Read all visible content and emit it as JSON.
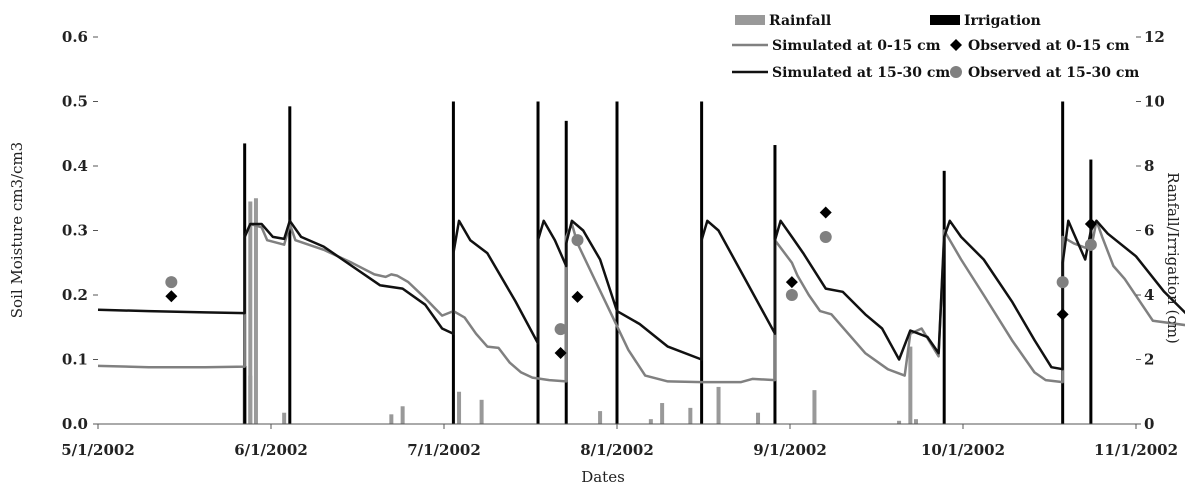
{
  "chart_data": {
    "type": "line",
    "title": "",
    "xlabel": "Dates",
    "ylabel": "Soil Moisture cm3/cm3",
    "y2label": "Ranfall/Irrigation (cm)",
    "xlim": [
      "2002-05-01",
      "2002-11-01"
    ],
    "ylim": [
      0,
      0.6
    ],
    "y2lim": [
      0,
      12
    ],
    "legend_position": "top-right",
    "grid": false,
    "x_ticks": [
      "5/1/2002",
      "6/1/2002",
      "7/1/2002",
      "8/1/2002",
      "9/1/2002",
      "10/1/2002",
      "11/1/2002"
    ],
    "y_ticks": [
      "0.0",
      "0.1",
      "0.2",
      "0.3",
      "0.4",
      "0.5",
      "0.6"
    ],
    "y2_ticks": [
      "0",
      "2",
      "4",
      "6",
      "8",
      "10",
      "12"
    ],
    "colors": {
      "rainfall": "#999999",
      "irrigation": "#000000",
      "sim_0_15": "#808080",
      "sim_15_30": "#111111",
      "obs_0_15": "#000000",
      "obs_15_30": "#808080"
    },
    "series": [
      {
        "name": "Rainfall",
        "kind": "bar",
        "axis": "right",
        "points": [
          [
            "2002-05-27",
            1.8
          ],
          [
            "2002-05-28",
            6.9
          ],
          [
            "2002-05-28",
            1.5
          ],
          [
            "2002-05-29",
            7.0
          ],
          [
            "2002-06-03",
            0.35
          ],
          [
            "2002-06-22",
            0.3
          ],
          [
            "2002-06-24",
            0.55
          ],
          [
            "2002-07-04",
            1.0
          ],
          [
            "2002-07-08",
            0.75
          ],
          [
            "2002-07-29",
            0.4
          ],
          [
            "2002-08-07",
            0.15
          ],
          [
            "2002-08-09",
            0.65
          ],
          [
            "2002-08-14",
            0.5
          ],
          [
            "2002-08-19",
            1.15
          ],
          [
            "2002-08-26",
            0.35
          ],
          [
            "2002-09-05",
            1.05
          ],
          [
            "2002-09-20",
            0.1
          ],
          [
            "2002-09-22",
            2.4
          ],
          [
            "2002-09-23",
            0.15
          ]
        ]
      },
      {
        "name": "Irrigation",
        "kind": "bar",
        "axis": "right",
        "points": [
          [
            "2002-05-27",
            8.7
          ],
          [
            "2002-06-04",
            9.85
          ],
          [
            "2002-07-03",
            10.0
          ],
          [
            "2002-07-18",
            10.0
          ],
          [
            "2002-07-23",
            9.4
          ],
          [
            "2002-08-01",
            10.0
          ],
          [
            "2002-08-16",
            10.0
          ],
          [
            "2002-08-29",
            8.65
          ],
          [
            "2002-09-28",
            7.85
          ],
          [
            "2002-10-19",
            10.0
          ],
          [
            "2002-10-24",
            8.2
          ]
        ]
      },
      {
        "name": "Simulated at 0-15 cm",
        "kind": "line",
        "axis": "left",
        "points": [
          [
            "2002-05-01",
            0.09
          ],
          [
            "2002-05-10",
            0.088
          ],
          [
            "2002-05-20",
            0.088
          ],
          [
            "2002-05-27",
            0.089
          ],
          [
            "2002-05-27",
            0.29
          ],
          [
            "2002-05-28",
            0.31
          ],
          [
            "2002-05-30",
            0.305
          ],
          [
            "2002-05-31",
            0.285
          ],
          [
            "2002-06-03",
            0.278
          ],
          [
            "2002-06-04",
            0.31
          ],
          [
            "2002-06-05",
            0.285
          ],
          [
            "2002-06-10",
            0.27
          ],
          [
            "2002-06-15",
            0.25
          ],
          [
            "2002-06-19",
            0.232
          ],
          [
            "2002-06-21",
            0.228
          ],
          [
            "2002-06-22",
            0.232
          ],
          [
            "2002-06-23",
            0.23
          ],
          [
            "2002-06-25",
            0.22
          ],
          [
            "2002-06-28",
            0.195
          ],
          [
            "2002-07-01",
            0.168
          ],
          [
            "2002-07-03",
            0.175
          ],
          [
            "2002-07-05",
            0.165
          ],
          [
            "2002-07-07",
            0.14
          ],
          [
            "2002-07-09",
            0.12
          ],
          [
            "2002-07-11",
            0.118
          ],
          [
            "2002-07-13",
            0.095
          ],
          [
            "2002-07-15",
            0.08
          ],
          [
            "2002-07-17",
            0.072
          ],
          [
            "2002-07-20",
            0.068
          ],
          [
            "2002-07-23",
            0.066
          ],
          [
            "2002-07-23",
            0.29
          ],
          [
            "2002-07-24",
            0.31
          ],
          [
            "2002-07-25",
            0.28
          ],
          [
            "2002-07-28",
            0.225
          ],
          [
            "2002-07-31",
            0.17
          ],
          [
            "2002-08-03",
            0.115
          ],
          [
            "2002-08-06",
            0.075
          ],
          [
            "2002-08-10",
            0.066
          ],
          [
            "2002-08-16",
            0.065
          ],
          [
            "2002-08-20",
            0.065
          ],
          [
            "2002-08-23",
            0.065
          ],
          [
            "2002-08-25",
            0.07
          ],
          [
            "2002-08-29",
            0.068
          ],
          [
            "2002-08-29",
            0.285
          ],
          [
            "2002-09-01",
            0.25
          ],
          [
            "2002-09-02",
            0.23
          ],
          [
            "2002-09-04",
            0.2
          ],
          [
            "2002-09-06",
            0.175
          ],
          [
            "2002-09-08",
            0.17
          ],
          [
            "2002-09-10",
            0.15
          ],
          [
            "2002-09-14",
            0.11
          ],
          [
            "2002-09-18",
            0.085
          ],
          [
            "2002-09-21",
            0.075
          ],
          [
            "2002-09-22",
            0.14
          ],
          [
            "2002-09-24",
            0.148
          ],
          [
            "2002-09-27",
            0.105
          ],
          [
            "2002-09-28",
            0.3
          ],
          [
            "2002-10-01",
            0.255
          ],
          [
            "2002-10-05",
            0.2
          ],
          [
            "2002-10-10",
            0.13
          ],
          [
            "2002-10-14",
            0.08
          ],
          [
            "2002-10-16",
            0.068
          ],
          [
            "2002-10-19",
            0.065
          ],
          [
            "2002-10-19",
            0.29
          ],
          [
            "2002-10-21",
            0.28
          ],
          [
            "2002-10-24",
            0.27
          ],
          [
            "2002-10-25",
            0.315
          ],
          [
            "2002-10-26",
            0.29
          ],
          [
            "2002-10-28",
            0.245
          ],
          [
            "2002-10-30",
            0.225
          ],
          [
            "2002-11-04",
            0.16
          ],
          [
            "2002-11-10",
            0.153
          ]
        ]
      },
      {
        "name": "Simulated at 15-30 cm",
        "kind": "line",
        "axis": "left",
        "points": [
          [
            "2002-05-01",
            0.177
          ],
          [
            "2002-05-10",
            0.175
          ],
          [
            "2002-05-20",
            0.173
          ],
          [
            "2002-05-27",
            0.172
          ],
          [
            "2002-05-27",
            0.29
          ],
          [
            "2002-05-28",
            0.31
          ],
          [
            "2002-05-30",
            0.31
          ],
          [
            "2002-06-01",
            0.29
          ],
          [
            "2002-06-03",
            0.287
          ],
          [
            "2002-06-04",
            0.315
          ],
          [
            "2002-06-06",
            0.29
          ],
          [
            "2002-06-10",
            0.275
          ],
          [
            "2002-06-15",
            0.245
          ],
          [
            "2002-06-20",
            0.215
          ],
          [
            "2002-06-24",
            0.21
          ],
          [
            "2002-06-28",
            0.185
          ],
          [
            "2002-07-01",
            0.148
          ],
          [
            "2002-07-03",
            0.14
          ],
          [
            "2002-07-03",
            0.265
          ],
          [
            "2002-07-04",
            0.315
          ],
          [
            "2002-07-06",
            0.285
          ],
          [
            "2002-07-09",
            0.265
          ],
          [
            "2002-07-14",
            0.19
          ],
          [
            "2002-07-18",
            0.125
          ],
          [
            "2002-07-18",
            0.285
          ],
          [
            "2002-07-19",
            0.315
          ],
          [
            "2002-07-21",
            0.285
          ],
          [
            "2002-07-23",
            0.245
          ],
          [
            "2002-07-23",
            0.28
          ],
          [
            "2002-07-24",
            0.315
          ],
          [
            "2002-07-26",
            0.3
          ],
          [
            "2002-07-29",
            0.255
          ],
          [
            "2002-08-01",
            0.175
          ],
          [
            "2002-08-05",
            0.155
          ],
          [
            "2002-08-10",
            0.12
          ],
          [
            "2002-08-16",
            0.1
          ],
          [
            "2002-08-16",
            0.285
          ],
          [
            "2002-08-17",
            0.315
          ],
          [
            "2002-08-19",
            0.3
          ],
          [
            "2002-08-24",
            0.22
          ],
          [
            "2002-08-29",
            0.14
          ],
          [
            "2002-08-29",
            0.285
          ],
          [
            "2002-08-30",
            0.315
          ],
          [
            "2002-09-01",
            0.29
          ],
          [
            "2002-09-03",
            0.265
          ],
          [
            "2002-09-07",
            0.21
          ],
          [
            "2002-09-10",
            0.205
          ],
          [
            "2002-09-14",
            0.17
          ],
          [
            "2002-09-17",
            0.148
          ],
          [
            "2002-09-20",
            0.1
          ],
          [
            "2002-09-22",
            0.145
          ],
          [
            "2002-09-25",
            0.135
          ],
          [
            "2002-09-27",
            0.11
          ],
          [
            "2002-09-28",
            0.29
          ],
          [
            "2002-09-29",
            0.315
          ],
          [
            "2002-10-01",
            0.29
          ],
          [
            "2002-10-05",
            0.255
          ],
          [
            "2002-10-10",
            0.19
          ],
          [
            "2002-10-14",
            0.13
          ],
          [
            "2002-10-17",
            0.088
          ],
          [
            "2002-10-19",
            0.085
          ],
          [
            "2002-10-19",
            0.25
          ],
          [
            "2002-10-20",
            0.315
          ],
          [
            "2002-10-21",
            0.295
          ],
          [
            "2002-10-23",
            0.255
          ],
          [
            "2002-10-24",
            0.3
          ],
          [
            "2002-10-25",
            0.315
          ],
          [
            "2002-10-27",
            0.295
          ],
          [
            "2002-11-01",
            0.26
          ],
          [
            "2002-11-06",
            0.205
          ],
          [
            "2002-11-10",
            0.17
          ]
        ]
      },
      {
        "name": "Observed at 0-15 cm",
        "kind": "scatter",
        "marker": "diamond",
        "axis": "left",
        "points": [
          [
            "2002-05-14",
            0.198
          ],
          [
            "2002-07-22",
            0.11
          ],
          [
            "2002-07-25",
            0.197
          ],
          [
            "2002-09-01",
            0.22
          ],
          [
            "2002-09-07",
            0.328
          ],
          [
            "2002-10-19",
            0.17
          ],
          [
            "2002-10-24",
            0.31
          ]
        ]
      },
      {
        "name": "Observed at 15-30 cm",
        "kind": "scatter",
        "marker": "circle",
        "axis": "left",
        "points": [
          [
            "2002-05-14",
            0.22
          ],
          [
            "2002-07-22",
            0.147
          ],
          [
            "2002-07-25",
            0.285
          ],
          [
            "2002-09-01",
            0.2
          ],
          [
            "2002-09-07",
            0.29
          ],
          [
            "2002-10-19",
            0.22
          ],
          [
            "2002-10-24",
            0.278
          ]
        ]
      }
    ]
  }
}
